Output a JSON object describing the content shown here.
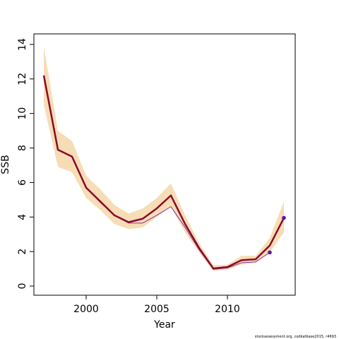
{
  "chart_data": {
    "type": "line",
    "xlabel": "Year",
    "ylabel": "SSB",
    "footer": "stockassessment.org, codkatbase2015, r4693",
    "x": [
      1997,
      1998,
      1999,
      2000,
      2001,
      2002,
      2003,
      2004,
      2005,
      2006,
      2007,
      2008,
      2009,
      2010,
      2011,
      2012,
      2013,
      2014
    ],
    "band_color": "#f6ddb5",
    "upper": [
      13.9,
      9.0,
      8.4,
      6.4,
      5.6,
      4.7,
      4.2,
      4.5,
      5.1,
      5.95,
      4.1,
      2.5,
      1.2,
      1.25,
      1.75,
      1.75,
      2.8,
      4.9
    ],
    "lower": [
      10.5,
      6.9,
      6.6,
      5.1,
      4.4,
      3.6,
      3.3,
      3.4,
      4.0,
      4.6,
      3.1,
      1.95,
      0.88,
      0.95,
      1.25,
      1.35,
      1.95,
      3.1
    ],
    "series": [
      {
        "color": "#8b2fa0",
        "width": 1,
        "end_marker": true,
        "values": [
          12.2,
          7.9,
          7.5,
          5.7,
          4.85,
          4.1,
          3.65,
          3.65,
          4.1,
          4.6,
          3.4,
          2.1,
          0.97,
          1.05,
          1.35,
          1.4,
          1.95,
          null
        ]
      },
      {
        "color": "#8b0a2a",
        "width": 2.5,
        "end_marker": true,
        "values": [
          12.2,
          7.9,
          7.5,
          5.7,
          4.9,
          4.1,
          3.7,
          3.9,
          4.5,
          5.25,
          3.6,
          2.2,
          1.02,
          1.1,
          1.5,
          1.55,
          2.35,
          3.95
        ]
      }
    ],
    "marker_color": "#6a0dad",
    "xlim": [
      1996.3,
      2014.8
    ],
    "ylim": [
      -0.53,
      14.61
    ],
    "xticks": [
      2000,
      2005,
      2010
    ],
    "yticks": [
      0,
      2,
      4,
      6,
      8,
      10,
      12,
      14
    ]
  }
}
